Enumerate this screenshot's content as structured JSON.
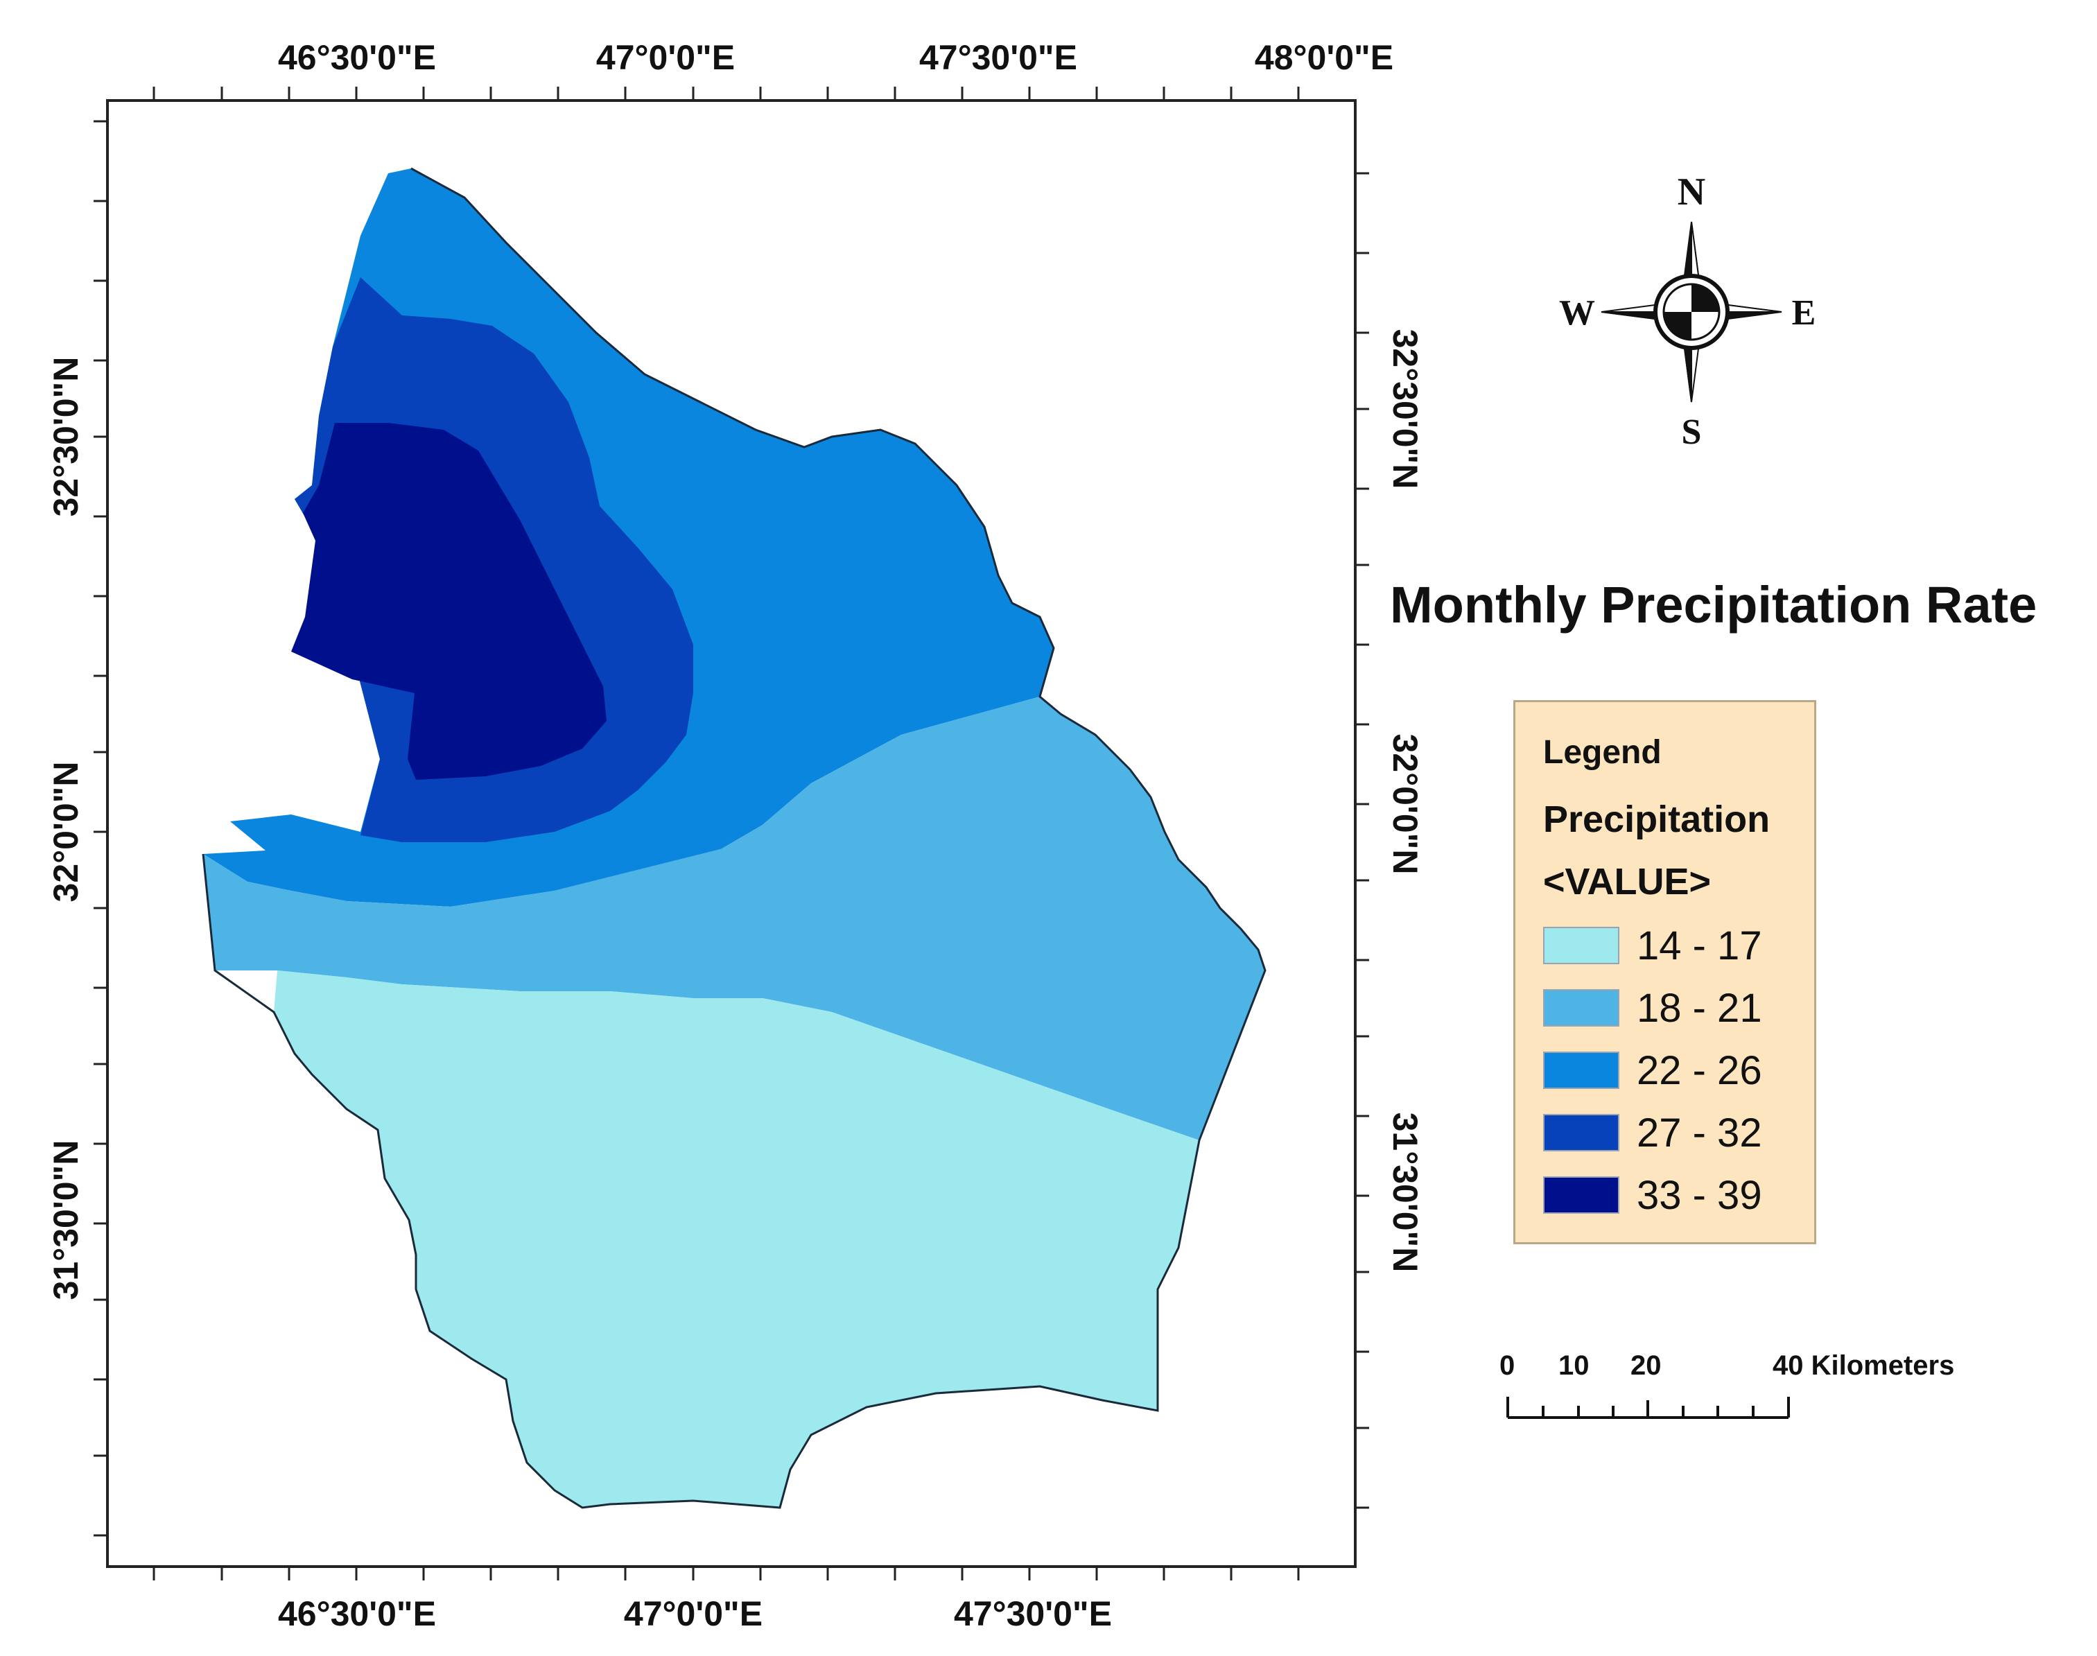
{
  "title": "Monthly Precipitation Rate",
  "axes": {
    "top_longitudes": [
      "46°30'0\"E",
      "47°0'0\"E",
      "47°30'0\"E",
      "48°0'0\"E"
    ],
    "bottom_longitudes": [
      "46°30'0\"E",
      "47°0'0\"E",
      "47°30'0\"E"
    ],
    "left_latitudes": [
      "32°30'0\"N",
      "32°0'0\"N",
      "31°30'0\"N"
    ],
    "right_latitudes": [
      "32°30'0\"N",
      "32°0'0\"N",
      "31°30'0\"N"
    ]
  },
  "north_arrow": {
    "n": "N",
    "s": "S",
    "e": "E",
    "w": "W"
  },
  "legend": {
    "title": "Legend",
    "field": "Precipitation",
    "value_label": "<VALUE>",
    "classes": [
      {
        "label": "14 - 17",
        "color": "#9ee9ee"
      },
      {
        "label": "18 - 21",
        "color": "#4eb4e6"
      },
      {
        "label": "22 - 26",
        "color": "#0b86df"
      },
      {
        "label": "27 - 32",
        "color": "#0742bb"
      },
      {
        "label": "33 - 39",
        "color": "#000f8c"
      }
    ]
  },
  "scale_bar": {
    "ticks": [
      "0",
      "10",
      "20"
    ],
    "end_label": "40 Kilometers"
  }
}
